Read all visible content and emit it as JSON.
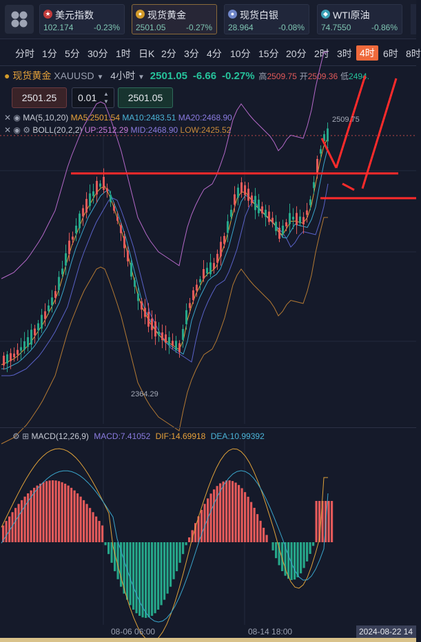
{
  "quotes": [
    {
      "name": "美元指数",
      "icon": "us-flag-icon",
      "price": "102.174",
      "change": "-0.23%"
    },
    {
      "name": "现货黄金",
      "icon": "gold-coin-icon",
      "price": "2501.05",
      "change": "-0.27%"
    },
    {
      "name": "现货白银",
      "icon": "silver-coin-icon",
      "price": "28.964",
      "change": "-0.08%"
    },
    {
      "name": "WTI原油",
      "icon": "oil-icon",
      "price": "74.7550",
      "change": "-0.86%"
    }
  ],
  "timeframes": [
    "分时",
    "1分",
    "5分",
    "30分",
    "1时",
    "日K",
    "2分",
    "3分",
    "4分",
    "10分",
    "15分",
    "20分",
    "2时",
    "3时",
    "4时",
    "6时",
    "8时"
  ],
  "active_timeframe": "4时",
  "symbol": {
    "name": "现货黄金",
    "code": "XAUUSD",
    "period": "4小时",
    "price": "2501.05",
    "change": "-6.66",
    "change_pct": "-0.27%",
    "high_label": "高",
    "high": "2509.75",
    "open_label": "开",
    "open": "2509.36",
    "low_label": "低",
    "low": "2494."
  },
  "order": {
    "sell_price": "2501.25",
    "lot": "0.01",
    "buy_price": "2501.05"
  },
  "indicators": {
    "ma_title": "MA(5,10,20)",
    "ma5": "MA5:2501.54",
    "ma10": "MA10:2483.51",
    "ma20": "MA20:2468.90",
    "boll_title": "BOLL(20,2,2)",
    "boll_up": "UP:2512.29",
    "boll_mid": "MID:2468.90",
    "boll_low": "LOW:2425.52",
    "macd_title": "MACD(12,26,9)",
    "macd": "MACD:7.41052",
    "dif": "DIF:14.69918",
    "dea": "DEA:10.99392"
  },
  "price_labels": {
    "high_mark": "2509.75",
    "low_mark": "2364.29"
  },
  "time_axis": [
    "08-06 06:00",
    "08-14 18:00"
  ],
  "crosshair_time": "2024-08-22 14",
  "colors": {
    "up": "#e35a5a",
    "down": "#26a689",
    "accent": "#ef6a3c",
    "annotation": "#ff2b2b"
  }
}
